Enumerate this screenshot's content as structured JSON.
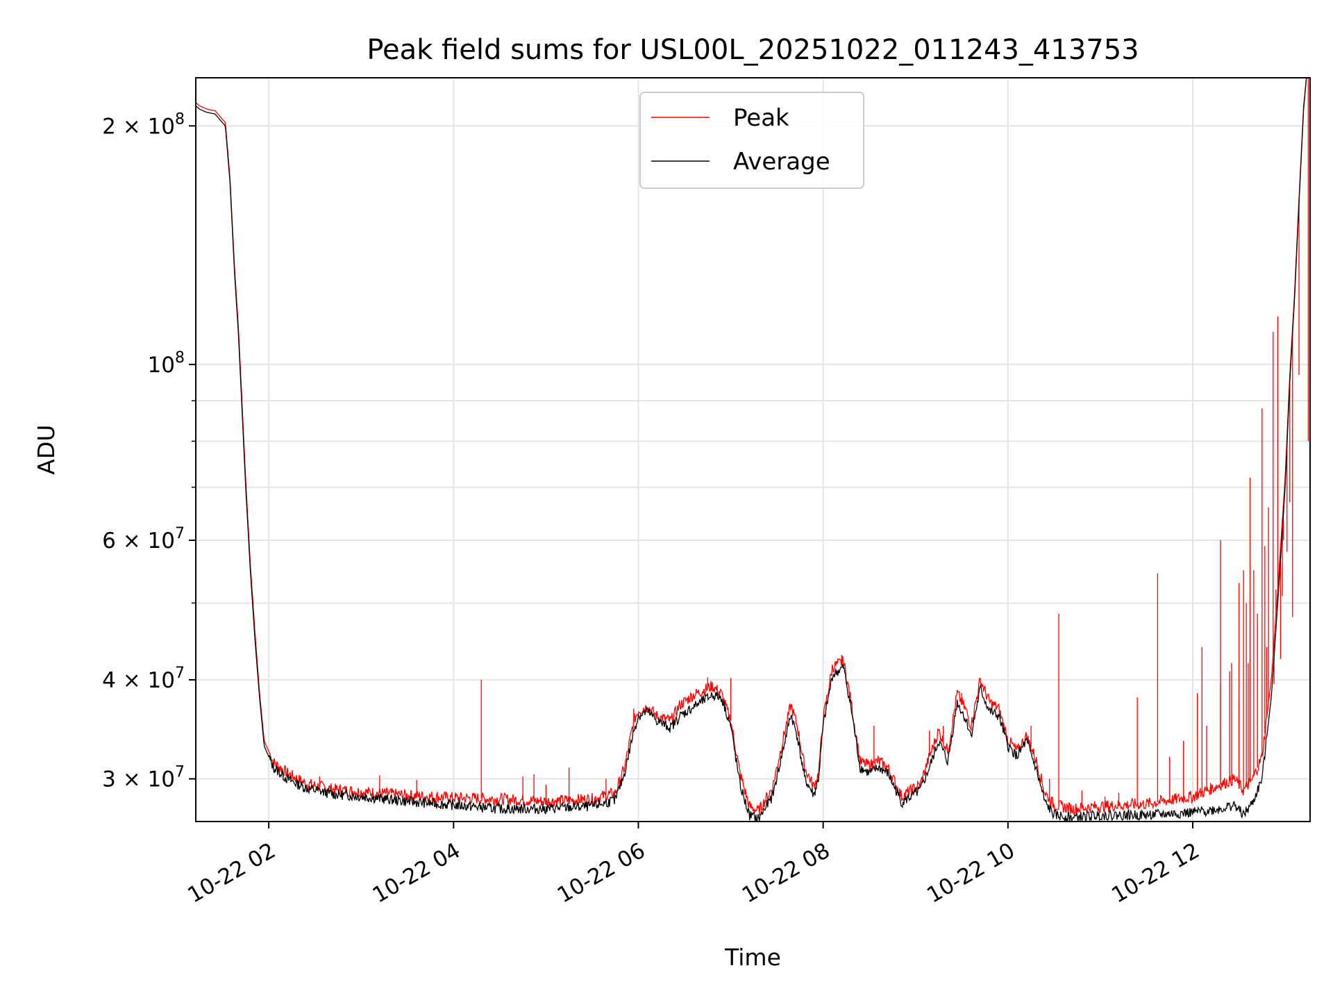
{
  "chart_data": {
    "type": "line",
    "title": "Peak field sums for USL00L_20251022_011243_413753",
    "xlabel": "Time",
    "ylabel": "ADU",
    "yscale": "log",
    "xlim_hours": [
      1.21,
      13.27
    ],
    "ylim": [
      26500000,
      230000000
    ],
    "grid": true,
    "legend_position": "top-center",
    "x_ticks": [
      {
        "hour": 2,
        "label": "10-22 02"
      },
      {
        "hour": 4,
        "label": "10-22 04"
      },
      {
        "hour": 6,
        "label": "10-22 06"
      },
      {
        "hour": 8,
        "label": "10-22 08"
      },
      {
        "hour": 10,
        "label": "10-22 10"
      },
      {
        "hour": 12,
        "label": "10-22 12"
      }
    ],
    "y_ticks_major": [
      {
        "value": 30000000,
        "base": "3 × 10",
        "exp": "7"
      },
      {
        "value": 40000000,
        "base": "4 × 10",
        "exp": "7"
      },
      {
        "value": 60000000,
        "base": "6 × 10",
        "exp": "7"
      },
      {
        "value": 100000000,
        "base": "10",
        "exp": "8"
      },
      {
        "value": 200000000,
        "base": "2 × 10",
        "exp": "8"
      }
    ],
    "y_ticks_minor": [
      50000000,
      70000000,
      80000000,
      90000000
    ],
    "series": [
      {
        "name": "Average",
        "color": "#000000",
        "points": [
          [
            1.21,
            212000000
          ],
          [
            1.25,
            210000000
          ],
          [
            1.33,
            208000000
          ],
          [
            1.42,
            207000000
          ],
          [
            1.48,
            203000000
          ],
          [
            1.53,
            200000000
          ],
          [
            1.58,
            170000000
          ],
          [
            1.63,
            130000000
          ],
          [
            1.67,
            110000000
          ],
          [
            1.7,
            93000000
          ],
          [
            1.75,
            70000000
          ],
          [
            1.8,
            55000000
          ],
          [
            1.85,
            45000000
          ],
          [
            1.9,
            38000000
          ],
          [
            1.95,
            33000000
          ],
          [
            2.05,
            31000000
          ],
          [
            2.2,
            30000000
          ],
          [
            2.4,
            29200000
          ],
          [
            2.7,
            28700000
          ],
          [
            3.0,
            28500000
          ],
          [
            3.5,
            28100000
          ],
          [
            4.0,
            27800000
          ],
          [
            4.5,
            27500000
          ],
          [
            5.0,
            27500000
          ],
          [
            5.5,
            27700000
          ],
          [
            5.75,
            28200000
          ],
          [
            5.85,
            30500000
          ],
          [
            5.95,
            34500000
          ],
          [
            6.0,
            36000000
          ],
          [
            6.1,
            36500000
          ],
          [
            6.2,
            35500000
          ],
          [
            6.35,
            34800000
          ],
          [
            6.45,
            36000000
          ],
          [
            6.6,
            37000000
          ],
          [
            6.8,
            38300000
          ],
          [
            6.9,
            38000000
          ],
          [
            7.0,
            35000000
          ],
          [
            7.1,
            29500000
          ],
          [
            7.2,
            27000000
          ],
          [
            7.3,
            26700000
          ],
          [
            7.45,
            28500000
          ],
          [
            7.55,
            32000000
          ],
          [
            7.65,
            36200000
          ],
          [
            7.72,
            34000000
          ],
          [
            7.8,
            30000000
          ],
          [
            7.9,
            28600000
          ],
          [
            7.95,
            30000000
          ],
          [
            8.0,
            35000000
          ],
          [
            8.1,
            40500000
          ],
          [
            8.22,
            41500000
          ],
          [
            8.3,
            37000000
          ],
          [
            8.4,
            31000000
          ],
          [
            8.5,
            30500000
          ],
          [
            8.6,
            31000000
          ],
          [
            8.7,
            30500000
          ],
          [
            8.85,
            28000000
          ],
          [
            8.95,
            28500000
          ],
          [
            9.05,
            29000000
          ],
          [
            9.15,
            31000000
          ],
          [
            9.25,
            33500000
          ],
          [
            9.35,
            31500000
          ],
          [
            9.45,
            37500000
          ],
          [
            9.55,
            35500000
          ],
          [
            9.6,
            34000000
          ],
          [
            9.7,
            39000000
          ],
          [
            9.8,
            36500000
          ],
          [
            9.9,
            36000000
          ],
          [
            10.0,
            33000000
          ],
          [
            10.1,
            32000000
          ],
          [
            10.2,
            33500000
          ],
          [
            10.3,
            31000000
          ],
          [
            10.4,
            28000000
          ],
          [
            10.5,
            27000000
          ],
          [
            10.7,
            26800000
          ],
          [
            11.0,
            27000000
          ],
          [
            11.5,
            27000000
          ],
          [
            12.0,
            27200000
          ],
          [
            12.3,
            27500000
          ],
          [
            12.45,
            27800000
          ],
          [
            12.55,
            27000000
          ],
          [
            12.65,
            28000000
          ],
          [
            12.75,
            30000000
          ],
          [
            12.85,
            38000000
          ],
          [
            12.92,
            50000000
          ],
          [
            13.0,
            70000000
          ],
          [
            13.05,
            95000000
          ],
          [
            13.1,
            120000000
          ],
          [
            13.15,
            160000000
          ],
          [
            13.2,
            210000000
          ],
          [
            13.23,
            230000000
          ]
        ]
      },
      {
        "name": "Peak",
        "color": "#ff0000",
        "points": [
          [
            1.21,
            214000000
          ],
          [
            1.25,
            212000000
          ],
          [
            1.33,
            210000000
          ],
          [
            1.42,
            209000000
          ],
          [
            1.48,
            205000000
          ],
          [
            1.53,
            202000000
          ],
          [
            1.58,
            172000000
          ],
          [
            1.63,
            132000000
          ],
          [
            1.67,
            112000000
          ],
          [
            1.7,
            95000000
          ],
          [
            1.75,
            71500000
          ],
          [
            1.8,
            56000000
          ],
          [
            1.85,
            46000000
          ],
          [
            1.9,
            38500000
          ],
          [
            1.95,
            33500000
          ],
          [
            2.05,
            31500000
          ],
          [
            2.2,
            30500000
          ],
          [
            2.4,
            29600000
          ],
          [
            2.7,
            29100000
          ],
          [
            3.0,
            28900000
          ],
          [
            3.5,
            28600000
          ],
          [
            4.0,
            28400000
          ],
          [
            4.5,
            28300000
          ],
          [
            5.0,
            28100000
          ],
          [
            5.5,
            28300000
          ],
          [
            5.75,
            28800000
          ],
          [
            5.85,
            31000000
          ],
          [
            5.95,
            35500000
          ],
          [
            6.0,
            36600000
          ],
          [
            6.1,
            37000000
          ],
          [
            6.2,
            36000000
          ],
          [
            6.35,
            35500000
          ],
          [
            6.45,
            37200000
          ],
          [
            6.6,
            38300000
          ],
          [
            6.8,
            39300000
          ],
          [
            6.9,
            38400000
          ],
          [
            7.0,
            35500000
          ],
          [
            7.1,
            30500000
          ],
          [
            7.2,
            27700000
          ],
          [
            7.3,
            27300000
          ],
          [
            7.45,
            29200000
          ],
          [
            7.55,
            33000000
          ],
          [
            7.65,
            37200000
          ],
          [
            7.72,
            35000000
          ],
          [
            7.8,
            31000000
          ],
          [
            7.9,
            29300000
          ],
          [
            7.95,
            30500000
          ],
          [
            8.0,
            35700000
          ],
          [
            8.1,
            41500000
          ],
          [
            8.22,
            42200000
          ],
          [
            8.3,
            37700000
          ],
          [
            8.4,
            31500000
          ],
          [
            8.5,
            31200000
          ],
          [
            8.6,
            31600000
          ],
          [
            8.7,
            31000000
          ],
          [
            8.85,
            28500000
          ],
          [
            8.95,
            29000000
          ],
          [
            9.05,
            29500000
          ],
          [
            9.15,
            32000000
          ],
          [
            9.25,
            34500000
          ],
          [
            9.35,
            32500000
          ],
          [
            9.45,
            38500000
          ],
          [
            9.55,
            36500000
          ],
          [
            9.6,
            35000000
          ],
          [
            9.7,
            40000000
          ],
          [
            9.8,
            37500000
          ],
          [
            9.9,
            36800000
          ],
          [
            10.0,
            33600000
          ],
          [
            10.1,
            32500000
          ],
          [
            10.2,
            34000000
          ],
          [
            10.3,
            31800000
          ],
          [
            10.4,
            28800000
          ],
          [
            10.5,
            27800000
          ],
          [
            10.7,
            27500000
          ],
          [
            11.0,
            27700000
          ],
          [
            11.5,
            27900000
          ],
          [
            12.0,
            28500000
          ],
          [
            12.3,
            29500000
          ],
          [
            12.45,
            30000000
          ],
          [
            12.55,
            29000000
          ],
          [
            12.65,
            30000000
          ],
          [
            12.75,
            32000000
          ],
          [
            12.85,
            40000000
          ],
          [
            12.92,
            52000000
          ],
          [
            13.0,
            72000000
          ],
          [
            13.05,
            97000000
          ],
          [
            13.1,
            122000000
          ],
          [
            13.15,
            162000000
          ],
          [
            13.2,
            212000000
          ],
          [
            13.23,
            230000000
          ]
        ],
        "spikes": [
          [
            2.55,
            30200000
          ],
          [
            3.2,
            30300000
          ],
          [
            3.6,
            29900000
          ],
          [
            4.3,
            40000000
          ],
          [
            4.75,
            30200000
          ],
          [
            4.87,
            30400000
          ],
          [
            5.0,
            29500000
          ],
          [
            5.25,
            31000000
          ],
          [
            5.65,
            30000000
          ],
          [
            5.95,
            36800000
          ],
          [
            6.75,
            40300000
          ],
          [
            7.0,
            40200000
          ],
          [
            8.2,
            43000000
          ],
          [
            8.55,
            35000000
          ],
          [
            9.15,
            34500000
          ],
          [
            9.3,
            35000000
          ],
          [
            9.5,
            38500000
          ],
          [
            9.7,
            40200000
          ],
          [
            10.25,
            35000000
          ],
          [
            10.45,
            30000000
          ],
          [
            10.55,
            48500000
          ],
          [
            10.8,
            29000000
          ],
          [
            11.05,
            28500000
          ],
          [
            11.2,
            28800000
          ],
          [
            11.4,
            38000000
          ],
          [
            11.62,
            54500000
          ],
          [
            11.75,
            32000000
          ],
          [
            11.9,
            33500000
          ],
          [
            12.05,
            38500000
          ],
          [
            12.15,
            35000000
          ],
          [
            12.3,
            39500000
          ],
          [
            12.4,
            41000000
          ],
          [
            12.5,
            37500000
          ],
          [
            12.6,
            42000000
          ],
          [
            12.7,
            48500000
          ],
          [
            12.8,
            44000000
          ],
          [
            12.88,
            39500000
          ],
          [
            12.95,
            42500000
          ],
          [
            12.1,
            44000000
          ],
          [
            12.3,
            60000000
          ],
          [
            12.42,
            42000000
          ],
          [
            12.55,
            55000000
          ],
          [
            12.62,
            72000000
          ],
          [
            12.7,
            47000000
          ],
          [
            12.75,
            88000000
          ],
          [
            12.82,
            66000000
          ],
          [
            12.87,
            110000000
          ],
          [
            12.92,
            115000000
          ],
          [
            12.98,
            60000000
          ],
          [
            13.05,
            67000000
          ],
          [
            13.15,
            97000000
          ],
          [
            13.25,
            80000000
          ],
          [
            12.5,
            53000000
          ],
          [
            12.58,
            50000000
          ],
          [
            12.66,
            55000000
          ],
          [
            12.78,
            59000000
          ],
          [
            12.9,
            52000000
          ],
          [
            12.97,
            51000000
          ],
          [
            13.02,
            58000000
          ],
          [
            13.08,
            48000000
          ]
        ]
      }
    ]
  }
}
